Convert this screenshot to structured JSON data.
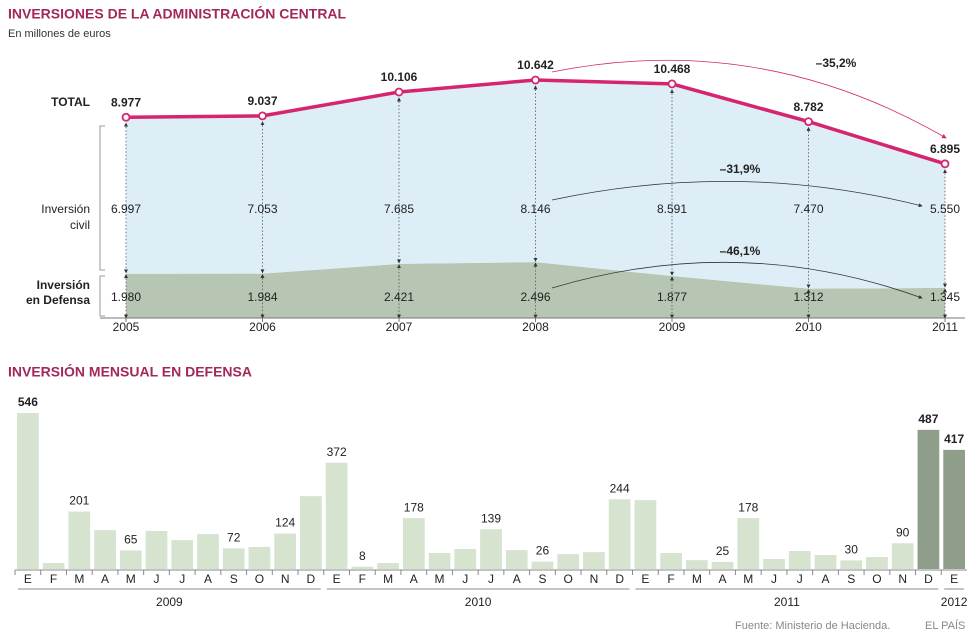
{
  "chart_data": [
    {
      "type": "area",
      "title": "INVERSIONES DE LA ADMINISTRACIÓN CENTRAL",
      "subtitle": "En millones de euros",
      "categories": [
        "2005",
        "2006",
        "2007",
        "2008",
        "2009",
        "2010",
        "2011"
      ],
      "series": [
        {
          "name": "TOTAL",
          "kind": "line",
          "color": "#d6246e",
          "values": [
            8977,
            9037,
            10106,
            10642,
            10468,
            8782,
            6895
          ],
          "value_labels": [
            "8.977",
            "9.037",
            "10.106",
            "10.642",
            "10.468",
            "8.782",
            "6.895"
          ]
        },
        {
          "name": "Inversión civil",
          "kind": "area",
          "color": "#ddeef6",
          "values": [
            6997,
            7053,
            7685,
            8146,
            8591,
            7470,
            5550
          ],
          "value_labels": [
            "6.997",
            "7.053",
            "7.685",
            "8.146",
            "8.591",
            "7.470",
            "5.550"
          ]
        },
        {
          "name": "Inversión en Defensa",
          "kind": "area",
          "color": "#b6c6b3",
          "values": [
            1980,
            1984,
            2421,
            2496,
            1877,
            1312,
            1345
          ],
          "value_labels": [
            "1.980",
            "1.984",
            "2.421",
            "2.496",
            "1.877",
            "1.312",
            "1.345"
          ]
        }
      ],
      "annotations": [
        "–35,2%",
        "–31,9%",
        "–46,1%"
      ]
    },
    {
      "type": "bar",
      "title": "INVERSIÓN MENSUAL EN DEFENSA",
      "categories": [
        "E",
        "F",
        "M",
        "A",
        "M",
        "J",
        "J",
        "A",
        "S",
        "O",
        "N",
        "D",
        "E",
        "F",
        "M",
        "A",
        "M",
        "J",
        "J",
        "A",
        "S",
        "O",
        "N",
        "D",
        "E",
        "F",
        "M",
        "A",
        "M",
        "J",
        "J",
        "A",
        "S",
        "O",
        "N",
        "D",
        "E"
      ],
      "values": [
        546,
        21,
        201,
        136,
        65,
        133,
        101,
        122,
        72,
        77,
        124,
        255,
        372,
        8,
        21,
        178,
        56,
        70,
        139,
        66,
        26,
        52,
        59,
        244,
        241,
        56,
        31,
        25,
        178,
        35,
        63,
        49,
        30,
        42,
        90,
        487,
        417
      ],
      "value_labels": [
        "546",
        null,
        "201",
        null,
        "65",
        null,
        null,
        null,
        "72",
        null,
        "124",
        null,
        "372",
        "8",
        null,
        "178",
        null,
        null,
        "139",
        null,
        "26",
        null,
        null,
        "244",
        null,
        null,
        null,
        "25",
        "178",
        null,
        null,
        null,
        "30",
        null,
        "90",
        "487",
        "417"
      ],
      "colors": [
        "#d5e3cf",
        "#d5e3cf",
        "#d5e3cf",
        "#d5e3cf",
        "#d5e3cf",
        "#d5e3cf",
        "#d5e3cf",
        "#d5e3cf",
        "#d5e3cf",
        "#d5e3cf",
        "#d5e3cf",
        "#d5e3cf",
        "#d5e3cf",
        "#d5e3cf",
        "#d5e3cf",
        "#d5e3cf",
        "#d5e3cf",
        "#d5e3cf",
        "#d5e3cf",
        "#d5e3cf",
        "#d5e3cf",
        "#d5e3cf",
        "#d5e3cf",
        "#d5e3cf",
        "#d5e3cf",
        "#d5e3cf",
        "#d5e3cf",
        "#d5e3cf",
        "#d5e3cf",
        "#d5e3cf",
        "#d5e3cf",
        "#d5e3cf",
        "#d5e3cf",
        "#d5e3cf",
        "#d5e3cf",
        "#8e9e8b",
        "#8e9e8b"
      ],
      "groups": [
        {
          "label": "2009",
          "size": 12
        },
        {
          "label": "2010",
          "size": 12
        },
        {
          "label": "2011",
          "size": 12
        },
        {
          "label": "2012",
          "size": 1
        }
      ]
    }
  ],
  "footer": {
    "source": "Fuente: Ministerio de Hacienda.",
    "brand": "EL PAÍS"
  }
}
